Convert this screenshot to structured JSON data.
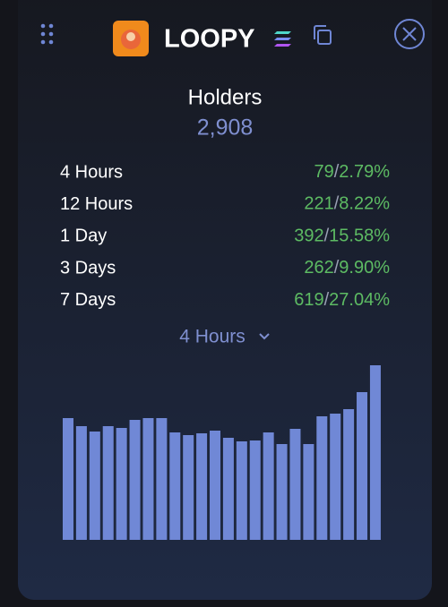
{
  "header": {
    "title": "LOOPY"
  },
  "holders": {
    "label": "Holders",
    "count": "2,908"
  },
  "separator": "/",
  "rows": [
    {
      "period": "4 Hours",
      "count": "79",
      "percent": "2.79%"
    },
    {
      "period": "12 Hours",
      "count": "221",
      "percent": "8.22%"
    },
    {
      "period": "1 Day",
      "count": "392",
      "percent": "15.58%"
    },
    {
      "period": "3 Days",
      "count": "262",
      "percent": "9.90%"
    },
    {
      "period": "7 Days",
      "count": "619",
      "percent": "27.04%"
    }
  ],
  "selector": {
    "label": "4 Hours"
  },
  "chart_data": {
    "type": "bar",
    "color": "#7088d6",
    "values": [
      136,
      127,
      121,
      127,
      125,
      134,
      136,
      136,
      120,
      117,
      119,
      122,
      114,
      110,
      111,
      120,
      107,
      124,
      107,
      138,
      141,
      146,
      165,
      195
    ]
  }
}
